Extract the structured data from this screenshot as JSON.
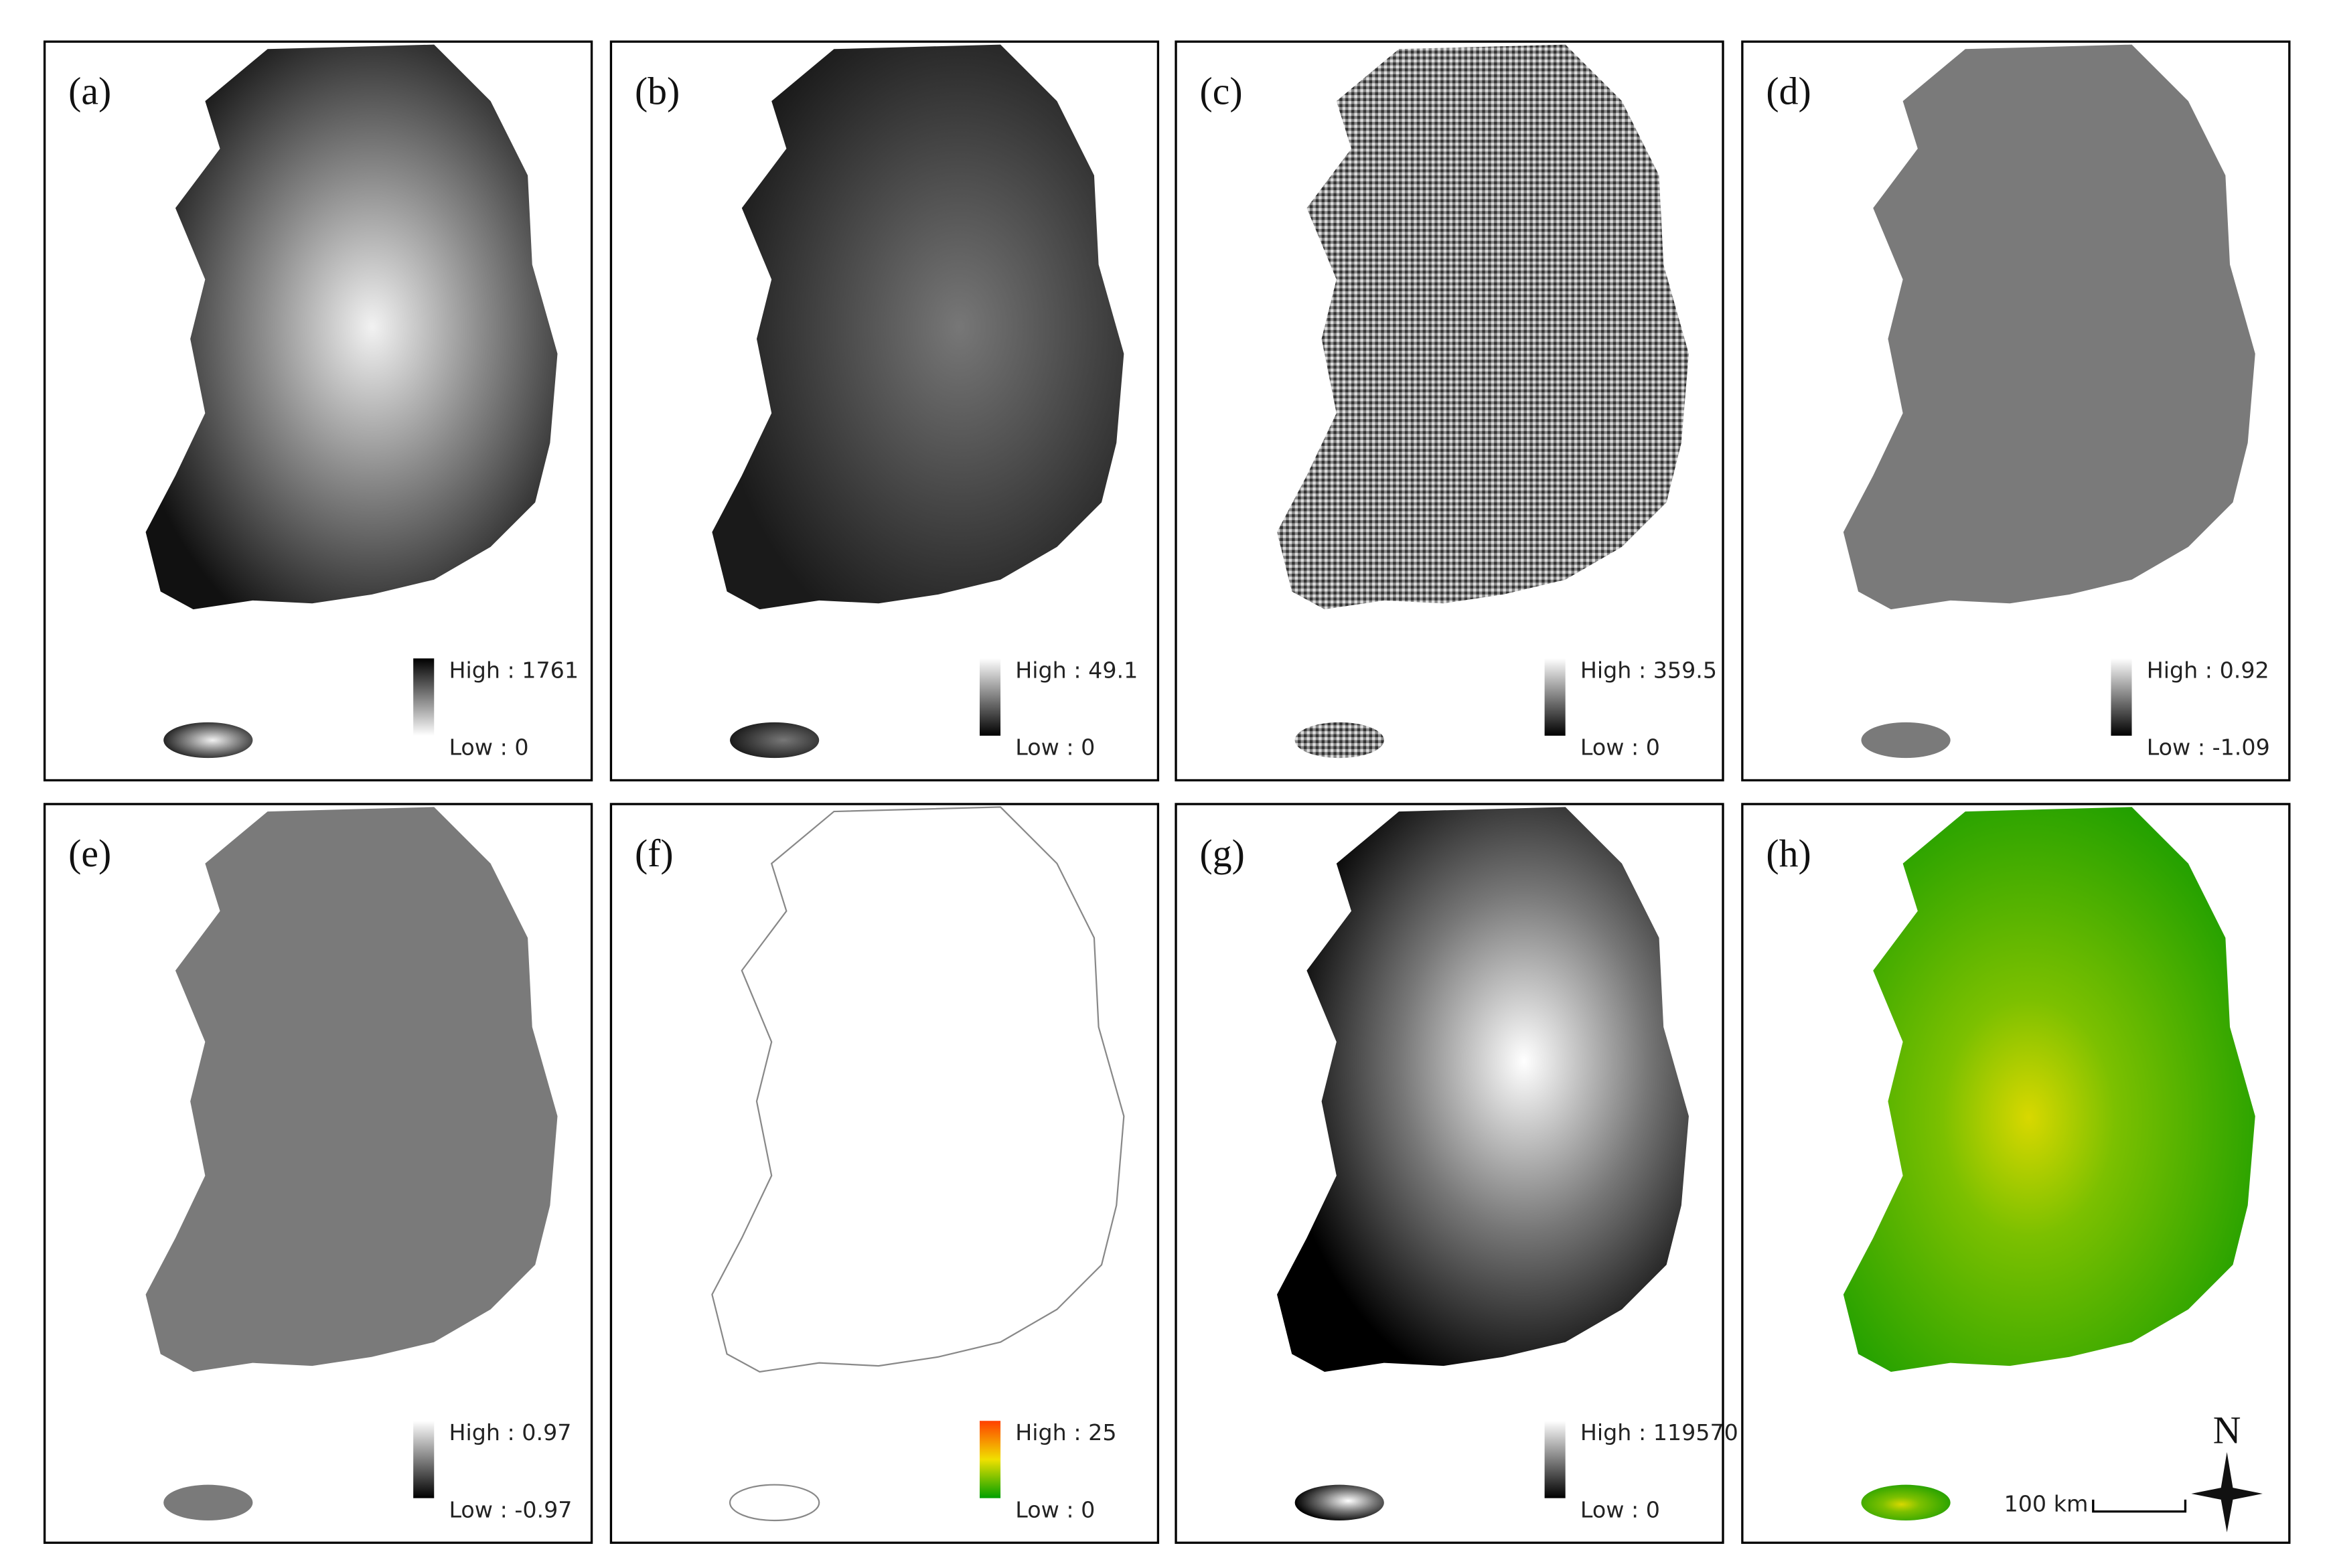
{
  "panels": [
    {
      "label": "(a)",
      "legend": {
        "high": "High : 1761",
        "low": "Low : 0"
      }
    },
    {
      "label": "(b)",
      "legend": {
        "high": "High : 49.1",
        "low": "Low : 0"
      }
    },
    {
      "label": "(c)",
      "legend": {
        "high": "High : 359.5",
        "low": "Low : 0"
      }
    },
    {
      "label": "(d)",
      "legend": {
        "high": "High : 0.92",
        "low": "Low : -1.09"
      }
    },
    {
      "label": "(e)",
      "legend": {
        "high": "High : 0.97",
        "low": "Low : -0.97"
      }
    },
    {
      "label": "(f)",
      "legend": {
        "high": "High : 25",
        "low": "Low : 0"
      }
    },
    {
      "label": "(g)",
      "legend": {
        "high": "High : 119570",
        "low": "Low : 0"
      }
    },
    {
      "label": "(h)",
      "scale_bar": "100 km",
      "north": "N"
    }
  ]
}
